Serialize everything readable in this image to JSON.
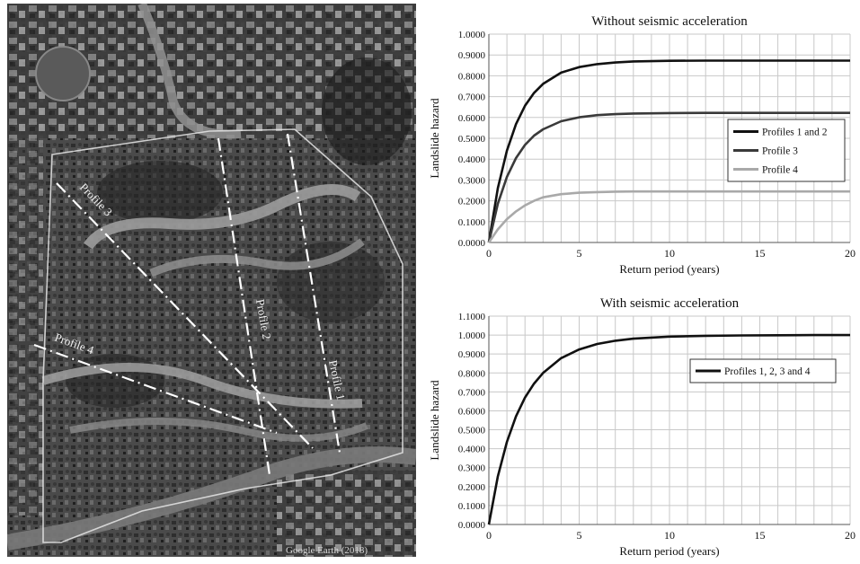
{
  "photo": {
    "profile_labels": [
      "Profile 1",
      "Profile 2",
      "Profile 3",
      "Profile 4"
    ],
    "attribution": "Google Earth (2018)"
  },
  "chart_data": [
    {
      "type": "line",
      "title": "Without seismic acceleration",
      "xlabel": "Return period (years)",
      "ylabel": "Landslide hazard",
      "xlim": [
        0,
        20
      ],
      "ylim": [
        0,
        1
      ],
      "x_ticks": [
        0,
        5,
        10,
        15,
        20
      ],
      "y_ticks": [
        "0.0000",
        "0.1000",
        "0.2000",
        "0.3000",
        "0.4000",
        "0.5000",
        "0.6000",
        "0.7000",
        "0.8000",
        "0.9000",
        "1.0000"
      ],
      "grid": true,
      "legend_position": "right",
      "series": [
        {
          "name": "Profiles 1 and 2",
          "color": "#111111",
          "x": [
            0,
            0.5,
            1,
            1.5,
            2,
            2.5,
            3,
            4,
            5,
            6,
            7,
            8,
            10,
            12,
            14,
            16,
            18,
            20
          ],
          "y": [
            0,
            0.261,
            0.441,
            0.568,
            0.656,
            0.718,
            0.761,
            0.815,
            0.842,
            0.856,
            0.864,
            0.869,
            0.872,
            0.873,
            0.873,
            0.873,
            0.873,
            0.873
          ]
        },
        {
          "name": "Profile 3",
          "color": "#3a3a3a",
          "x": [
            0,
            0.5,
            1,
            1.5,
            2,
            2.5,
            3,
            4,
            5,
            6,
            7,
            8,
            10,
            12,
            14,
            16,
            18,
            20
          ],
          "y": [
            0,
            0.186,
            0.315,
            0.405,
            0.468,
            0.513,
            0.543,
            0.582,
            0.601,
            0.611,
            0.616,
            0.619,
            0.621,
            0.622,
            0.622,
            0.622,
            0.622,
            0.622
          ]
        },
        {
          "name": "Profile 4",
          "color": "#a9a9a9",
          "x": [
            0,
            0.5,
            1,
            1.5,
            2,
            2.5,
            3,
            4,
            5,
            6,
            7,
            8,
            10,
            12,
            14,
            16,
            18,
            20
          ],
          "y": [
            0,
            0.063,
            0.112,
            0.149,
            0.178,
            0.2,
            0.217,
            0.232,
            0.239,
            0.242,
            0.244,
            0.245,
            0.245,
            0.245,
            0.245,
            0.245,
            0.245,
            0.245
          ]
        }
      ]
    },
    {
      "type": "line",
      "title": "With  seismic acceleration",
      "xlabel": "Return period (years)",
      "ylabel": "Landslide hazard",
      "xlim": [
        0,
        20
      ],
      "ylim": [
        0,
        1.1
      ],
      "x_ticks": [
        0,
        5,
        10,
        15,
        20
      ],
      "y_ticks": [
        "0.0000",
        "0.1000",
        "0.2000",
        "0.3000",
        "0.4000",
        "0.5000",
        "0.6000",
        "0.7000",
        "0.8000",
        "0.9000",
        "1.0000",
        "1.1000"
      ],
      "grid": true,
      "legend_position": "right",
      "series": [
        {
          "name": "Profiles 1, 2, 3 and 4",
          "color": "#111111",
          "x": [
            0,
            0.5,
            1,
            1.5,
            2,
            2.5,
            3,
            4,
            5,
            6,
            7,
            8,
            10,
            12,
            14,
            16,
            18,
            20
          ],
          "y": [
            0,
            0.254,
            0.436,
            0.571,
            0.67,
            0.744,
            0.8,
            0.878,
            0.924,
            0.953,
            0.97,
            0.981,
            0.992,
            0.996,
            0.998,
            0.999,
            1.0,
            1.0
          ]
        }
      ]
    }
  ]
}
